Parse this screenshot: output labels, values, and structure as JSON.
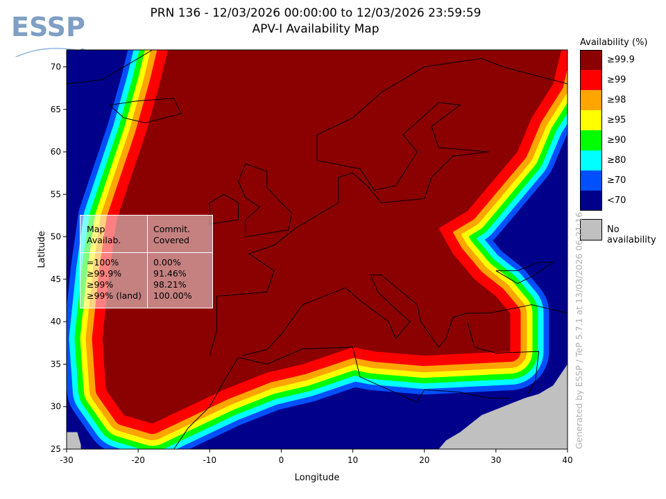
{
  "header": {
    "logo_text": "ESSP",
    "title_line1": "PRN 136 - 12/03/2026 00:00:00 to 12/03/2026 23:59:59",
    "title_line2": "APV-I Availability Map"
  },
  "chart_data": {
    "type": "heatmap",
    "xlabel": "Longitude",
    "ylabel": "Latitude",
    "xlim": [
      -30,
      40
    ],
    "ylim": [
      25,
      72
    ],
    "xticks": [
      -30,
      -20,
      -10,
      0,
      10,
      20,
      30,
      40
    ],
    "yticks": [
      25,
      30,
      35,
      40,
      45,
      50,
      55,
      60,
      65,
      70
    ],
    "legend": {
      "title": "Availability (%)",
      "placement": "right",
      "classes": [
        {
          "label": "≥99.9",
          "color": "#8b0000"
        },
        {
          "label": "≥99",
          "color": "#ff0000"
        },
        {
          "label": "≥98",
          "color": "#ffa500"
        },
        {
          "label": "≥95",
          "color": "#ffff00"
        },
        {
          "label": "≥90",
          "color": "#00ff00"
        },
        {
          "label": "≥80",
          "color": "#00ffff"
        },
        {
          "label": "≥70",
          "color": "#0050ff"
        },
        {
          "label": "<70",
          "color": "#00008b"
        }
      ],
      "no_data": {
        "label": "No availability",
        "color": "#c0c0c0"
      }
    }
  },
  "stats": {
    "col1_header": "Map\nAvailab.",
    "col2_header": "Commit.\nCovered",
    "rows": [
      {
        "k": "=100%",
        "v": "0.00%"
      },
      {
        "k": "≥99.9%",
        "v": "91.46%"
      },
      {
        "k": "≥99%",
        "v": "98.21%"
      },
      {
        "k": "≥99% (land)",
        "v": "100.00%"
      }
    ]
  },
  "footer": {
    "generated": "Generated by ESSP / TeP 5.7.1 at 13/03/2026 06:21:16"
  }
}
